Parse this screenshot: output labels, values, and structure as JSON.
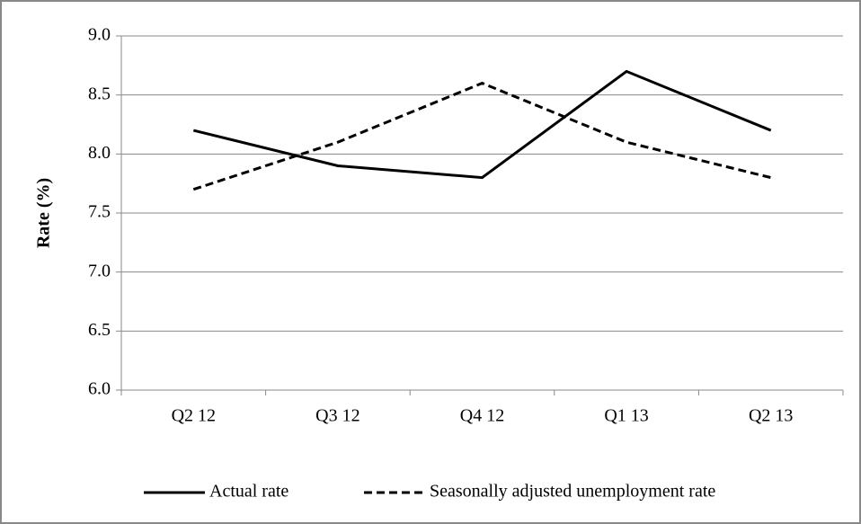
{
  "chart_data": {
    "type": "line",
    "y_label": "Rate (%)",
    "categories": [
      "Q2 12",
      "Q3 12",
      "Q4 12",
      "Q1 13",
      "Q2 13"
    ],
    "series": [
      {
        "name": "Actual rate",
        "color": "#000000",
        "line_style": "solid",
        "values": [
          8.2,
          7.9,
          7.8,
          8.7,
          8.2
        ]
      },
      {
        "name": "Seasonally adjusted unemployment rate",
        "color": "#000000",
        "line_style": "dashed",
        "values": [
          7.7,
          8.1,
          8.6,
          8.1,
          7.8
        ]
      }
    ],
    "ylim": [
      6,
      9
    ],
    "yticks": [
      {
        "value": 6,
        "label": "6.0"
      },
      6.5,
      {
        "value": 7,
        "label": "7.0"
      },
      7.5,
      {
        "value": 8,
        "label": "8.0"
      },
      8.5,
      {
        "value": 9,
        "label": "9.0"
      }
    ],
    "grid": true,
    "legend": "bottom"
  }
}
